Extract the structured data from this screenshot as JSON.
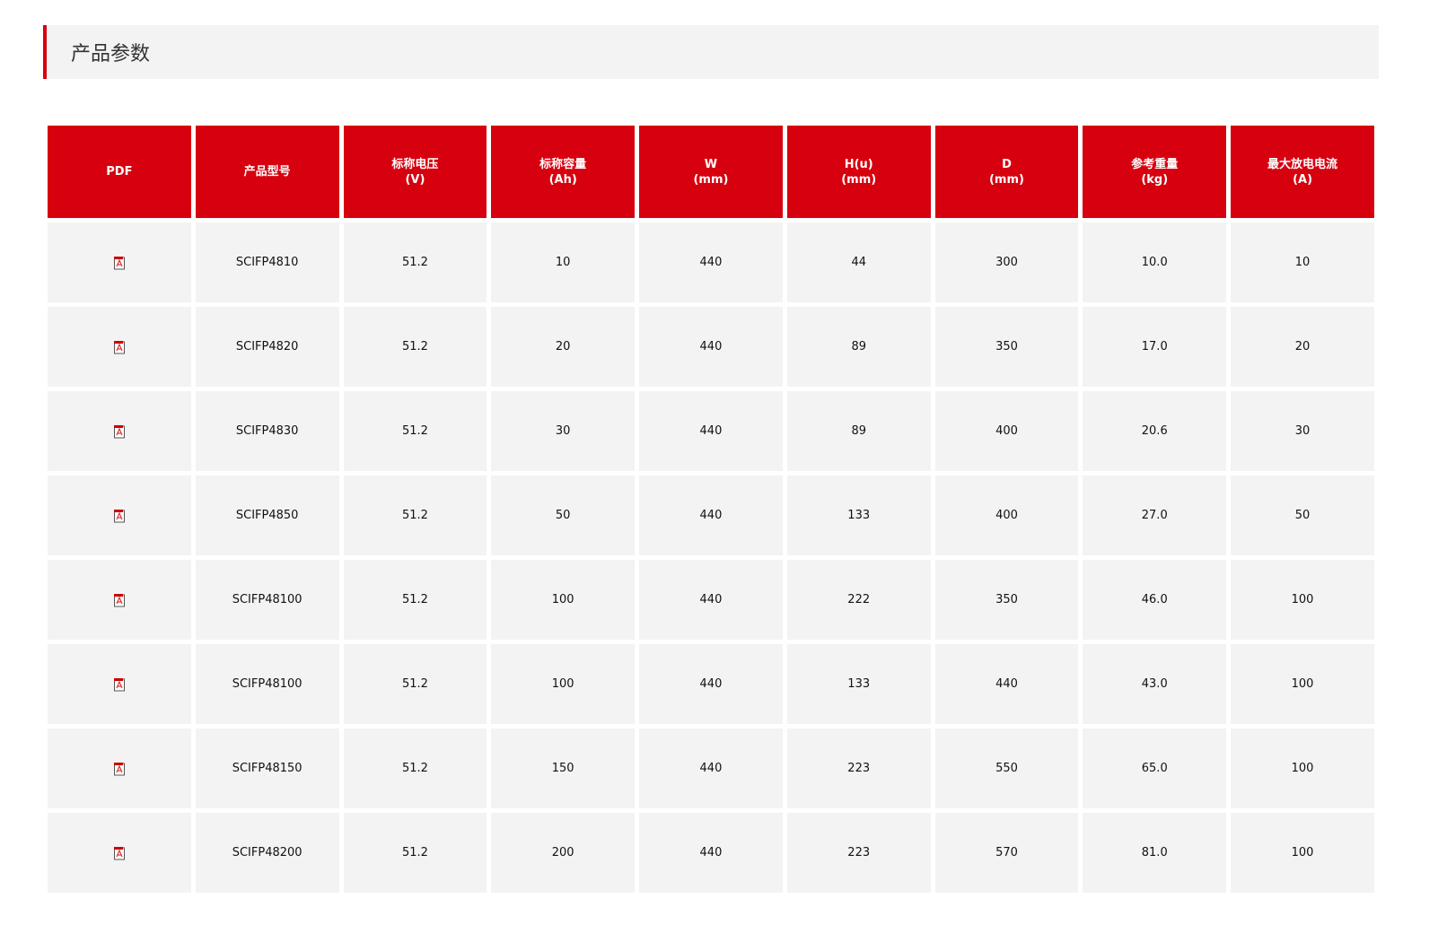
{
  "section_title": "产品参数",
  "accent_color": "#d7000f",
  "columns": [
    {
      "line1": "PDF",
      "line2": ""
    },
    {
      "line1": "产品型号",
      "line2": ""
    },
    {
      "line1": "标称电压",
      "line2": "(V)"
    },
    {
      "line1": "标称容量",
      "line2": "(Ah)"
    },
    {
      "line1": "W",
      "line2": "(mm)"
    },
    {
      "line1": "H(u)",
      "line2": "(mm)"
    },
    {
      "line1": "D",
      "line2": "(mm)"
    },
    {
      "line1": "参考重量",
      "line2": "(kg)"
    },
    {
      "line1": "最大放电电流",
      "line2": "(A)"
    }
  ],
  "pdf_icon": "pdf-file-icon",
  "rows": [
    [
      "SCIFP4810",
      "51.2",
      "10",
      "440",
      "44",
      "300",
      "10.0",
      "10"
    ],
    [
      "SCIFP4820",
      "51.2",
      "20",
      "440",
      "89",
      "350",
      "17.0",
      "20"
    ],
    [
      "SCIFP4830",
      "51.2",
      "30",
      "440",
      "89",
      "400",
      "20.6",
      "30"
    ],
    [
      "SCIFP4850",
      "51.2",
      "50",
      "440",
      "133",
      "400",
      "27.0",
      "50"
    ],
    [
      "SCIFP48100",
      "51.2",
      "100",
      "440",
      "222",
      "350",
      "46.0",
      "100"
    ],
    [
      "SCIFP48100",
      "51.2",
      "100",
      "440",
      "133",
      "440",
      "43.0",
      "100"
    ],
    [
      "SCIFP48150",
      "51.2",
      "150",
      "440",
      "223",
      "550",
      "65.0",
      "100"
    ],
    [
      "SCIFP48200",
      "51.2",
      "200",
      "440",
      "223",
      "570",
      "81.0",
      "100"
    ]
  ]
}
